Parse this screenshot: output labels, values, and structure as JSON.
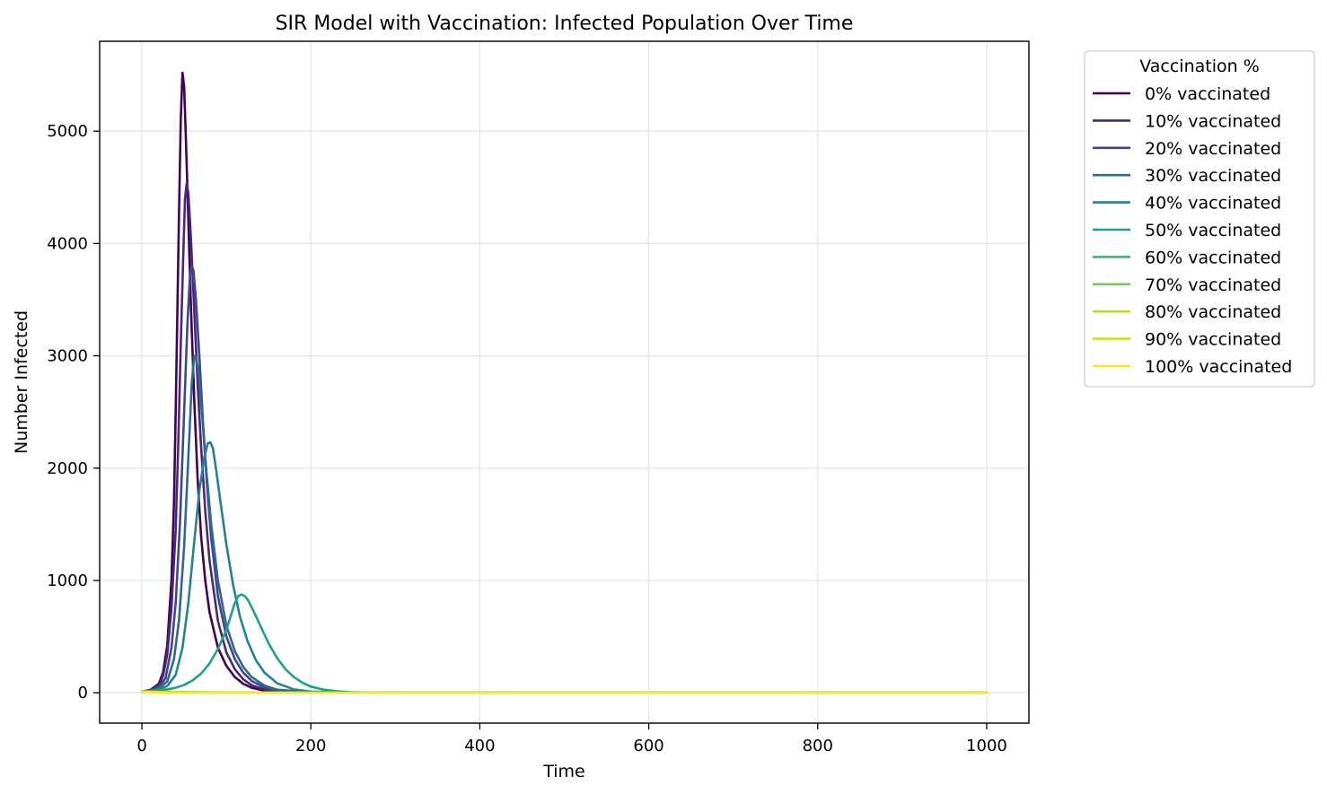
{
  "chart_data": {
    "type": "line",
    "title": "SIR Model with Vaccination: Infected Population Over Time",
    "xlabel": "Time",
    "ylabel": "Number Infected",
    "xlim": [
      -50,
      1050
    ],
    "ylim": [
      -270,
      5800
    ],
    "xticks": [
      0,
      200,
      400,
      600,
      800,
      1000
    ],
    "yticks": [
      0,
      1000,
      2000,
      3000,
      4000,
      5000
    ],
    "grid": true,
    "legend": {
      "title": "Vaccination %",
      "placement": "outside-upper-right"
    },
    "series": [
      {
        "name": "0% vaccinated",
        "color": "#440154",
        "points": [
          [
            0,
            10
          ],
          [
            10,
            25
          ],
          [
            20,
            80
          ],
          [
            25,
            180
          ],
          [
            30,
            420
          ],
          [
            35,
            1000
          ],
          [
            38,
            1700
          ],
          [
            40,
            2500
          ],
          [
            42,
            3400
          ],
          [
            44,
            4300
          ],
          [
            46,
            5100
          ],
          [
            48,
            5520
          ],
          [
            50,
            5400
          ],
          [
            52,
            4950
          ],
          [
            55,
            4200
          ],
          [
            58,
            3450
          ],
          [
            62,
            2600
          ],
          [
            66,
            1900
          ],
          [
            70,
            1400
          ],
          [
            75,
            1000
          ],
          [
            80,
            720
          ],
          [
            90,
            400
          ],
          [
            100,
            240
          ],
          [
            110,
            140
          ],
          [
            120,
            80
          ],
          [
            130,
            45
          ],
          [
            145,
            20
          ],
          [
            160,
            8
          ],
          [
            200,
            2
          ],
          [
            300,
            0
          ],
          [
            1000,
            0
          ]
        ]
      },
      {
        "name": "10% vaccinated",
        "color": "#482878",
        "points": [
          [
            0,
            10
          ],
          [
            10,
            22
          ],
          [
            20,
            65
          ],
          [
            25,
            150
          ],
          [
            30,
            340
          ],
          [
            35,
            750
          ],
          [
            40,
            1450
          ],
          [
            43,
            2200
          ],
          [
            46,
            3100
          ],
          [
            49,
            3900
          ],
          [
            51,
            4400
          ],
          [
            53,
            4530
          ],
          [
            55,
            4450
          ],
          [
            58,
            4050
          ],
          [
            62,
            3400
          ],
          [
            66,
            2750
          ],
          [
            70,
            2200
          ],
          [
            75,
            1620
          ],
          [
            80,
            1180
          ],
          [
            90,
            640
          ],
          [
            100,
            360
          ],
          [
            110,
            210
          ],
          [
            120,
            120
          ],
          [
            130,
            68
          ],
          [
            145,
            30
          ],
          [
            160,
            12
          ],
          [
            200,
            2
          ],
          [
            300,
            0
          ],
          [
            1000,
            0
          ]
        ]
      },
      {
        "name": "20% vaccinated",
        "color": "#3e4989",
        "points": [
          [
            0,
            10
          ],
          [
            10,
            20
          ],
          [
            20,
            50
          ],
          [
            28,
            130
          ],
          [
            35,
            400
          ],
          [
            40,
            800
          ],
          [
            45,
            1500
          ],
          [
            50,
            2500
          ],
          [
            54,
            3300
          ],
          [
            57,
            3720
          ],
          [
            59,
            3800
          ],
          [
            61,
            3760
          ],
          [
            64,
            3500
          ],
          [
            68,
            3000
          ],
          [
            72,
            2450
          ],
          [
            77,
            1850
          ],
          [
            82,
            1380
          ],
          [
            90,
            860
          ],
          [
            100,
            500
          ],
          [
            110,
            300
          ],
          [
            120,
            180
          ],
          [
            130,
            105
          ],
          [
            145,
            48
          ],
          [
            160,
            20
          ],
          [
            200,
            3
          ],
          [
            300,
            0
          ],
          [
            1000,
            0
          ]
        ]
      },
      {
        "name": "30% vaccinated",
        "color": "#31688e",
        "points": [
          [
            0,
            10
          ],
          [
            10,
            18
          ],
          [
            20,
            40
          ],
          [
            30,
            100
          ],
          [
            38,
            300
          ],
          [
            44,
            650
          ],
          [
            50,
            1300
          ],
          [
            55,
            2100
          ],
          [
            59,
            2750
          ],
          [
            62,
            3000
          ],
          [
            64,
            2990
          ],
          [
            67,
            2850
          ],
          [
            71,
            2500
          ],
          [
            76,
            2000
          ],
          [
            82,
            1500
          ],
          [
            90,
            1000
          ],
          [
            100,
            600
          ],
          [
            110,
            370
          ],
          [
            120,
            230
          ],
          [
            130,
            140
          ],
          [
            145,
            65
          ],
          [
            160,
            28
          ],
          [
            200,
            4
          ],
          [
            300,
            0
          ],
          [
            1000,
            0
          ]
        ]
      },
      {
        "name": "40% vaccinated",
        "color": "#26828e",
        "points": [
          [
            0,
            10
          ],
          [
            10,
            16
          ],
          [
            20,
            30
          ],
          [
            30,
            60
          ],
          [
            40,
            160
          ],
          [
            48,
            400
          ],
          [
            55,
            800
          ],
          [
            62,
            1350
          ],
          [
            68,
            1800
          ],
          [
            74,
            2100
          ],
          [
            78,
            2220
          ],
          [
            81,
            2230
          ],
          [
            84,
            2180
          ],
          [
            88,
            1980
          ],
          [
            93,
            1700
          ],
          [
            100,
            1320
          ],
          [
            108,
            960
          ],
          [
            116,
            680
          ],
          [
            125,
            460
          ],
          [
            135,
            290
          ],
          [
            145,
            180
          ],
          [
            160,
            85
          ],
          [
            180,
            30
          ],
          [
            200,
            10
          ],
          [
            250,
            1
          ],
          [
            300,
            0
          ],
          [
            1000,
            0
          ]
        ]
      },
      {
        "name": "50% vaccinated",
        "color": "#1f9e89",
        "points": [
          [
            0,
            10
          ],
          [
            10,
            14
          ],
          [
            20,
            20
          ],
          [
            30,
            30
          ],
          [
            40,
            45
          ],
          [
            50,
            70
          ],
          [
            60,
            110
          ],
          [
            70,
            170
          ],
          [
            80,
            260
          ],
          [
            90,
            390
          ],
          [
            100,
            560
          ],
          [
            105,
            680
          ],
          [
            110,
            800
          ],
          [
            114,
            860
          ],
          [
            118,
            875
          ],
          [
            122,
            860
          ],
          [
            126,
            820
          ],
          [
            132,
            730
          ],
          [
            140,
            600
          ],
          [
            150,
            440
          ],
          [
            160,
            310
          ],
          [
            170,
            210
          ],
          [
            180,
            140
          ],
          [
            190,
            90
          ],
          [
            200,
            55
          ],
          [
            215,
            28
          ],
          [
            230,
            14
          ],
          [
            250,
            5
          ],
          [
            280,
            1
          ],
          [
            300,
            0
          ],
          [
            1000,
            0
          ]
        ]
      },
      {
        "name": "60% vaccinated",
        "color": "#35b779",
        "points": [
          [
            0,
            10
          ],
          [
            50,
            6
          ],
          [
            100,
            3
          ],
          [
            200,
            1
          ],
          [
            300,
            0
          ],
          [
            1000,
            0
          ]
        ]
      },
      {
        "name": "70% vaccinated",
        "color": "#6ece58",
        "points": [
          [
            0,
            10
          ],
          [
            50,
            5
          ],
          [
            100,
            2
          ],
          [
            200,
            0
          ],
          [
            1000,
            0
          ]
        ]
      },
      {
        "name": "80% vaccinated",
        "color": "#b5de2b",
        "points": [
          [
            0,
            10
          ],
          [
            40,
            4
          ],
          [
            100,
            1
          ],
          [
            200,
            0
          ],
          [
            1000,
            0
          ]
        ]
      },
      {
        "name": "90% vaccinated",
        "color": "#c8e020",
        "points": [
          [
            0,
            10
          ],
          [
            30,
            3
          ],
          [
            100,
            0
          ],
          [
            1000,
            0
          ]
        ]
      },
      {
        "name": "100% vaccinated",
        "color": "#fde725",
        "points": [
          [
            0,
            10
          ],
          [
            20,
            2
          ],
          [
            100,
            0
          ],
          [
            1000,
            0
          ]
        ]
      }
    ]
  }
}
